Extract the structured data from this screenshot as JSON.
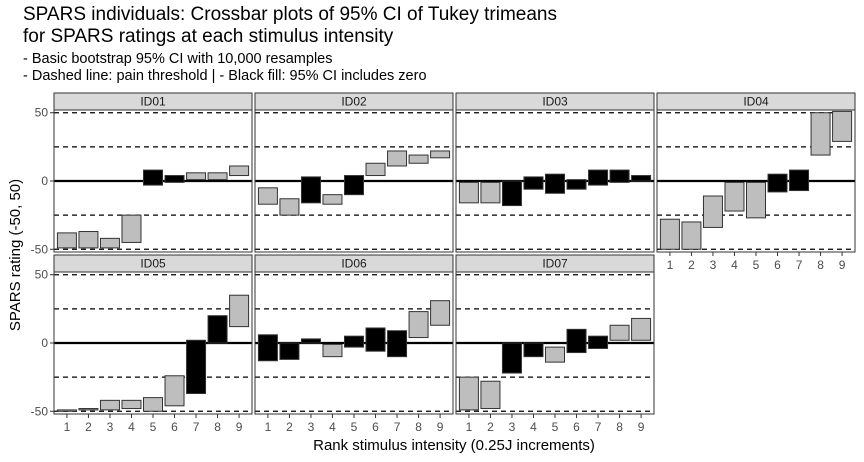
{
  "chart_data": {
    "type": "crossbar",
    "title": [
      "SPARS individuals: Crossbar plots of 95% CI of Tukey trimeans",
      "for SPARS ratings at each stimulus intensity"
    ],
    "subtitle": [
      "- Basic bootstrap 95% CI with 10,000 resamples",
      "- Dashed line: pain threshold | - Black fill: 95% CI includes zero"
    ],
    "xlabel": "Rank stimulus intensity (0.25J increments)",
    "ylabel": "SPARS rating (-50, 50)",
    "ylim": [
      -52,
      52
    ],
    "yticks": [
      -50,
      0,
      50
    ],
    "ytick_labels": [
      "-50",
      "0",
      "50"
    ],
    "x_categories": [
      "1",
      "2",
      "3",
      "4",
      "5",
      "6",
      "7",
      "8",
      "9"
    ],
    "reference_lines": {
      "solid": [
        0
      ],
      "dashed": [
        -50,
        -25,
        25,
        50
      ]
    },
    "fill_colors": {
      "includes_zero": "#000000",
      "excludes_zero": "#bebebe"
    },
    "panels": [
      {
        "id": "ID01",
        "bars": [
          {
            "x": 1,
            "lo": -49,
            "hi": -38
          },
          {
            "x": 2,
            "lo": -49,
            "hi": -37
          },
          {
            "x": 3,
            "lo": -49,
            "hi": -42
          },
          {
            "x": 4,
            "lo": -45,
            "hi": -25
          },
          {
            "x": 5,
            "lo": -3,
            "hi": 8
          },
          {
            "x": 6,
            "lo": -1,
            "hi": 4
          },
          {
            "x": 7,
            "lo": 1,
            "hi": 6
          },
          {
            "x": 8,
            "lo": 1,
            "hi": 6
          },
          {
            "x": 9,
            "lo": 4,
            "hi": 11
          }
        ]
      },
      {
        "id": "ID02",
        "bars": [
          {
            "x": 1,
            "lo": -17,
            "hi": -5
          },
          {
            "x": 2,
            "lo": -25,
            "hi": -13
          },
          {
            "x": 3,
            "lo": -16,
            "hi": 3
          },
          {
            "x": 4,
            "lo": -17,
            "hi": -10
          },
          {
            "x": 5,
            "lo": -10,
            "hi": 4
          },
          {
            "x": 6,
            "lo": 4,
            "hi": 13
          },
          {
            "x": 7,
            "lo": 11,
            "hi": 22
          },
          {
            "x": 8,
            "lo": 13,
            "hi": 19
          },
          {
            "x": 9,
            "lo": 17,
            "hi": 22
          }
        ]
      },
      {
        "id": "ID03",
        "bars": [
          {
            "x": 1,
            "lo": -16,
            "hi": -1
          },
          {
            "x": 2,
            "lo": -16,
            "hi": -1
          },
          {
            "x": 3,
            "lo": -18,
            "hi": 0
          },
          {
            "x": 4,
            "lo": -6,
            "hi": 3
          },
          {
            "x": 5,
            "lo": -9,
            "hi": 5
          },
          {
            "x": 6,
            "lo": -6,
            "hi": 1
          },
          {
            "x": 7,
            "lo": -3,
            "hi": 8
          },
          {
            "x": 8,
            "lo": -1,
            "hi": 8
          },
          {
            "x": 9,
            "lo": 0,
            "hi": 4
          }
        ]
      },
      {
        "id": "ID04",
        "bars": [
          {
            "x": 1,
            "lo": -50,
            "hi": -28
          },
          {
            "x": 2,
            "lo": -50,
            "hi": -30
          },
          {
            "x": 3,
            "lo": -34,
            "hi": -11
          },
          {
            "x": 4,
            "lo": -22,
            "hi": -1
          },
          {
            "x": 5,
            "lo": -27,
            "hi": -1
          },
          {
            "x": 6,
            "lo": -8,
            "hi": 5
          },
          {
            "x": 7,
            "lo": -7,
            "hi": 8
          },
          {
            "x": 8,
            "lo": 19,
            "hi": 50
          },
          {
            "x": 9,
            "lo": 29,
            "hi": 51
          }
        ]
      },
      {
        "id": "ID05",
        "bars": [
          {
            "x": 1,
            "lo": -50,
            "hi": -49
          },
          {
            "x": 2,
            "lo": -49,
            "hi": -48
          },
          {
            "x": 3,
            "lo": -49,
            "hi": -42
          },
          {
            "x": 4,
            "lo": -48,
            "hi": -42
          },
          {
            "x": 5,
            "lo": -50,
            "hi": -40
          },
          {
            "x": 6,
            "lo": -46,
            "hi": -24
          },
          {
            "x": 7,
            "lo": -37,
            "hi": 2
          },
          {
            "x": 8,
            "lo": 0,
            "hi": 20
          },
          {
            "x": 9,
            "lo": 12,
            "hi": 35
          }
        ]
      },
      {
        "id": "ID06",
        "bars": [
          {
            "x": 1,
            "lo": -13,
            "hi": 6
          },
          {
            "x": 2,
            "lo": -12,
            "hi": 0
          },
          {
            "x": 3,
            "lo": 0,
            "hi": 3
          },
          {
            "x": 4,
            "lo": -10,
            "hi": -1
          },
          {
            "x": 5,
            "lo": -3,
            "hi": 5
          },
          {
            "x": 6,
            "lo": -6,
            "hi": 11
          },
          {
            "x": 7,
            "lo": -10,
            "hi": 9
          },
          {
            "x": 8,
            "lo": 4,
            "hi": 23
          },
          {
            "x": 9,
            "lo": 13,
            "hi": 31
          }
        ]
      },
      {
        "id": "ID07",
        "bars": [
          {
            "x": 1,
            "lo": -49,
            "hi": -25
          },
          {
            "x": 2,
            "lo": -48,
            "hi": -28
          },
          {
            "x": 3,
            "lo": -22,
            "hi": 0
          },
          {
            "x": 4,
            "lo": -10,
            "hi": 0
          },
          {
            "x": 5,
            "lo": -14,
            "hi": -3
          },
          {
            "x": 6,
            "lo": -7,
            "hi": 10
          },
          {
            "x": 7,
            "lo": -4,
            "hi": 5
          },
          {
            "x": 8,
            "lo": 2,
            "hi": 13
          },
          {
            "x": 9,
            "lo": 2,
            "hi": 18
          }
        ]
      }
    ]
  }
}
